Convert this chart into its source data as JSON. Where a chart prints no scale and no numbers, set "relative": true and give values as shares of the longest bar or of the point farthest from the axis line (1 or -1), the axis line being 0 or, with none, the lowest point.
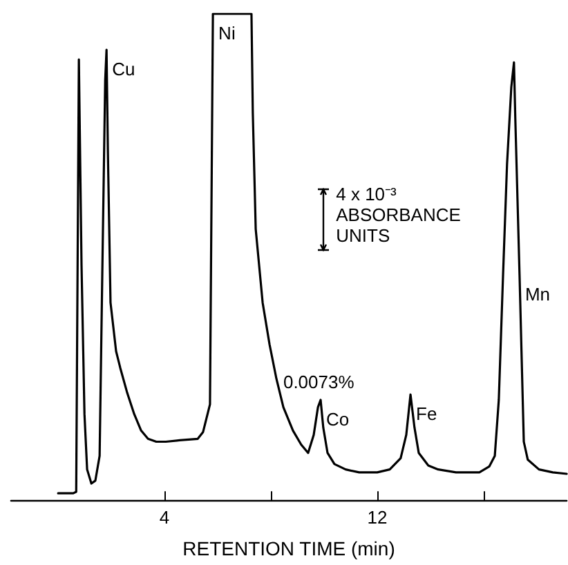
{
  "chart_data": {
    "type": "line",
    "relative": true,
    "xlabel": "RETENTION TIME (min)",
    "xlim": [
      -1.77,
      19.12
    ],
    "xticks": [
      4,
      {
        "value": 8,
        "label": null
      },
      12,
      {
        "value": 16,
        "label": null
      }
    ],
    "x": [
      0,
      0.57,
      0.68,
      0.78,
      0.88,
      0.99,
      1.09,
      1.25,
      1.4,
      1.56,
      1.66,
      1.77,
      1.82,
      1.87,
      1.97,
      2.18,
      2.34,
      2.6,
      2.86,
      3.12,
      3.38,
      3.69,
      4.05,
      4.57,
      5.25,
      5.45,
      5.71,
      5.82,
      7.27,
      7.32,
      7.43,
      7.69,
      7.95,
      8.21,
      8.47,
      8.83,
      9.14,
      9.4,
      9.61,
      9.77,
      9.87,
      9.97,
      10.13,
      10.39,
      10.81,
      11.32,
      12.0,
      12.47,
      12.88,
      13.09,
      13.25,
      13.4,
      13.56,
      13.92,
      14.29,
      14.96,
      15.84,
      16.21,
      16.42,
      16.57,
      16.73,
      16.88,
      17.04,
      17.14,
      17.19,
      17.35,
      17.51,
      17.66,
      18.08,
      18.6,
      19.12
    ],
    "values": [
      0.014,
      0.014,
      0.017,
      0.906,
      0.483,
      0.177,
      0.063,
      0.034,
      0.04,
      0.091,
      0.463,
      0.863,
      0.926,
      0.72,
      0.406,
      0.306,
      0.271,
      0.22,
      0.177,
      0.143,
      0.126,
      0.12,
      0.12,
      0.123,
      0.126,
      0.14,
      0.197,
      1,
      1,
      0.797,
      0.557,
      0.406,
      0.32,
      0.249,
      0.191,
      0.143,
      0.114,
      0.097,
      0.134,
      0.191,
      0.206,
      0.149,
      0.097,
      0.074,
      0.063,
      0.057,
      0.057,
      0.063,
      0.086,
      0.134,
      0.217,
      0.149,
      0.097,
      0.071,
      0.063,
      0.057,
      0.057,
      0.069,
      0.091,
      0.206,
      0.463,
      0.691,
      0.849,
      0.9,
      0.786,
      0.463,
      0.12,
      0.083,
      0.063,
      0.057,
      0.054
    ],
    "color": "#000000",
    "marker": "none",
    "line_style": "solid",
    "grid": false,
    "annotations": [
      {
        "text": "Cu",
        "x": 1.82,
        "y": 0.926
      },
      {
        "text": "Ni",
        "x": 5.82,
        "y": 1
      },
      "0.0073%",
      {
        "text": "Co",
        "x": 9.87,
        "y": 0.206
      },
      {
        "text": "Fe",
        "x": 13.25,
        "y": 0.217
      },
      {
        "text": "Mn",
        "x": 17.35,
        "y": 0.463
      },
      "4 x 10⁻³ ABSORBANCE UNITS"
    ]
  }
}
